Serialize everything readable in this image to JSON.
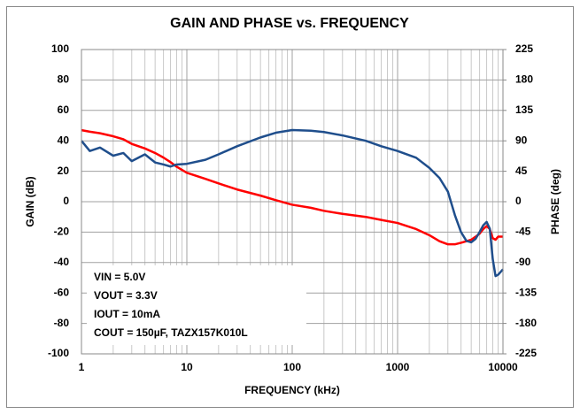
{
  "chart_data": {
    "type": "line",
    "title": "GAIN AND PHASE vs. FREQUENCY",
    "x_label": "FREQUENCY (kHz)",
    "y_label": "GAIN (dB)",
    "y2_label": "PHASE (deg)",
    "x_log": true,
    "grid": true,
    "xlim": [
      1,
      10000
    ],
    "xticks": [
      1,
      10,
      100,
      1000,
      10000
    ],
    "ylim": [
      -100,
      100
    ],
    "yticks": [
      -100,
      -80,
      -60,
      -40,
      -20,
      0,
      20,
      40,
      60,
      80,
      100
    ],
    "y2lim": [
      -225,
      225
    ],
    "y2ticks": [
      -225,
      -180,
      -135,
      -90,
      -45,
      0,
      45,
      90,
      135,
      180,
      225
    ],
    "annotations": [
      "VIN = 5.0V",
      "VOUT = 3.3V",
      "IOUT = 10mA",
      "COUT = 150µF, TAZX157K010L"
    ],
    "x": [
      1,
      1.2,
      1.5,
      2,
      2.5,
      3,
      4,
      5,
      6,
      7,
      8,
      10,
      15,
      20,
      30,
      50,
      70,
      100,
      150,
      200,
      300,
      500,
      700,
      1000,
      1500,
      2000,
      2500,
      3000,
      3500,
      4000,
      4500,
      5000,
      5500,
      6000,
      6500,
      7000,
      7500,
      8000,
      8500,
      9000,
      10000
    ],
    "series": [
      {
        "color": "#ff0000",
        "axis": "y",
        "values": [
          47,
          46,
          45,
          43,
          41,
          38,
          35,
          32,
          29,
          26,
          23,
          19,
          15,
          12,
          8,
          4,
          1,
          -2,
          -4,
          -6,
          -8,
          -10,
          -12,
          -14,
          -18,
          -22,
          -26,
          -28,
          -28,
          -27,
          -26,
          -25,
          -23,
          -21,
          -18,
          -16,
          -18,
          -24,
          -25,
          -23,
          -23
        ]
      },
      {
        "color": "#1f4e8c",
        "axis": "y2",
        "values": [
          90,
          75,
          80,
          68,
          72,
          60,
          70,
          58,
          55,
          52,
          55,
          56,
          62,
          70,
          82,
          95,
          102,
          106,
          105,
          103,
          98,
          90,
          82,
          75,
          65,
          50,
          35,
          15,
          -20,
          -45,
          -58,
          -60,
          -55,
          -45,
          -35,
          -30,
          -40,
          -85,
          -110,
          -108,
          -100
        ]
      }
    ]
  }
}
